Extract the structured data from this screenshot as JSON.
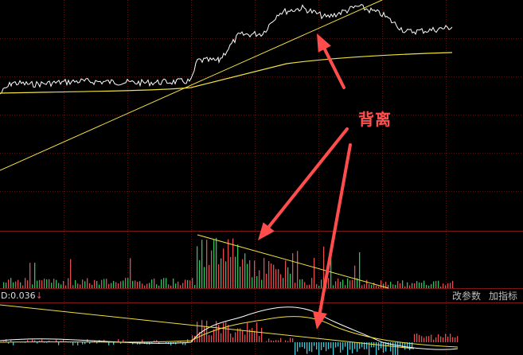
{
  "colors": {
    "background": "#000000",
    "grid": "#5a1010",
    "price_line": "#ffffff",
    "avg_line": "#f0e040",
    "trend_line": "#f0e040",
    "bar_up": "#e05050",
    "bar_down": "#30c060",
    "macd_pos": "#e05050",
    "macd_neg": "#40c8d8",
    "arrow": "#ff4d4d",
    "annotation": "#ff5050"
  },
  "indicator_label": "D:0.036",
  "indicator_arrow": "↓",
  "toolbar": {
    "change_params_label": "改参数",
    "add_indicator_label": "加指标"
  },
  "annotation_text": "背离",
  "icons": [
    "divergence-arrow-icon"
  ]
}
